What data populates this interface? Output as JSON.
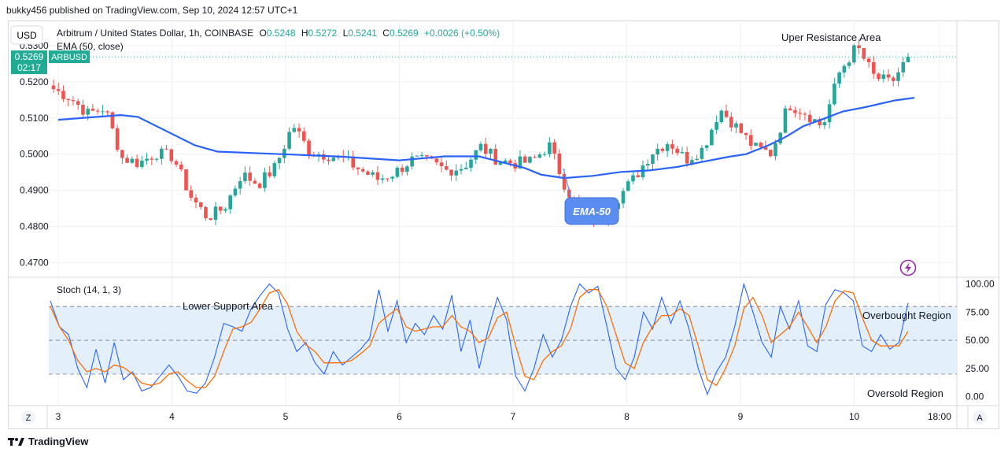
{
  "header": {
    "published": "bukky456 published on TradingView.com, Sep 10, 2024 12:57 UTC+1"
  },
  "currency_button": "USD",
  "footer": {
    "brand": "TradingView"
  },
  "scale_buttons": {
    "left": "Z",
    "right": "A"
  },
  "price_pane": {
    "symbol_line": "Arbitrum / United States Dollar, 1h, COINBASE",
    "ohlc": {
      "o_label": "O",
      "o": "0.5248",
      "h_label": "H",
      "h": "0.5272",
      "l_label": "L",
      "l": "0.5241",
      "c_label": "C",
      "c": "0.5269",
      "change": "+0.0026 (+0.50%)"
    },
    "indicator_line": "EMA (50, close)",
    "last_price_tag": {
      "price": "0.5269",
      "countdown": "02:17",
      "symbol": "ARBUSD"
    },
    "annotations": {
      "resistance": "Uper Resistance Area",
      "ema_callout": "EMA-50"
    }
  },
  "stoch_pane": {
    "title": "Stoch (14, 1, 3)",
    "annotations": {
      "support": "Lower Support Area",
      "overbought": "Overbought Region",
      "oversold": "Oversold Region"
    }
  },
  "colors": {
    "up": "#26a69a",
    "down": "#ef5350",
    "ema": "#2962ff",
    "k_line": "#2962ff",
    "d_line": "#ff6d00",
    "band": "#e3f0fc",
    "last_tag": "#22ab94",
    "callout": "#5b8cf0"
  },
  "chart_data": [
    {
      "type": "candlestick",
      "title": "Arbitrum / United States Dollar, 1h, COINBASE",
      "y_ticks": [
        "0.5300",
        "0.5200",
        "0.5100",
        "0.5000",
        "0.4900",
        "0.4800",
        "0.4700"
      ],
      "x_ticks": [
        "3",
        "4",
        "5",
        "6",
        "7",
        "8",
        "9",
        "10",
        "18:00"
      ],
      "ylim": [
        0.466,
        0.5365
      ],
      "grid": true,
      "last_price": 0.5269,
      "anchors_close": [
        0.518,
        0.5155,
        0.5112,
        0.5128,
        0.499,
        0.4975,
        0.5003,
        0.4993,
        0.4885,
        0.4825,
        0.4852,
        0.4945,
        0.4918,
        0.4965,
        0.5082,
        0.5005,
        0.4998,
        0.4985,
        0.4955,
        0.493,
        0.495,
        0.4985,
        0.4978,
        0.4955,
        0.4965,
        0.502,
        0.4983,
        0.4975,
        0.498,
        0.5025,
        0.4905,
        0.4835,
        0.4815,
        0.4878,
        0.4935,
        0.5005,
        0.5035,
        0.4985,
        0.5015,
        0.5125,
        0.5073,
        0.5018,
        0.5002,
        0.5138,
        0.5115,
        0.5075,
        0.5228,
        0.5298,
        0.5215,
        0.5195,
        0.5268
      ],
      "ema50": [
        0.5095,
        0.5108,
        0.5103,
        0.5025,
        0.5007,
        0.5002,
        0.4997,
        0.4993,
        0.4983,
        0.4994,
        0.4994,
        0.4978,
        0.4962,
        0.4943,
        0.4934,
        0.494,
        0.4951,
        0.4955,
        0.4965,
        0.4978,
        0.4993,
        0.5,
        0.5025,
        0.5048,
        0.5077,
        0.51,
        0.5118,
        0.513,
        0.5148,
        0.5156
      ],
      "ema50_x_days": [
        3.0,
        3.55,
        3.7,
        4.2,
        4.4,
        4.8,
        5.2,
        5.5,
        6.0,
        6.4,
        6.7,
        6.9,
        7.1,
        7.25,
        7.45,
        7.7,
        7.95,
        8.2,
        8.45,
        8.65,
        8.9,
        9.05,
        9.25,
        9.4,
        9.55,
        9.75,
        9.9,
        10.1,
        10.35,
        10.53
      ],
      "ema_label": "EMA (50, close)"
    },
    {
      "type": "line",
      "title": "Stoch (14, 1, 3)",
      "y_ticks": [
        "100.00",
        "75.00",
        "50.00",
        "25.00",
        "0.00"
      ],
      "ylim": [
        -8,
        106
      ],
      "bands": [
        20,
        50,
        80
      ],
      "series": [
        {
          "name": "%K",
          "values": [
            85,
            62,
            55,
            25,
            8,
            42,
            12,
            48,
            15,
            22,
            5,
            8,
            18,
            28,
            18,
            5,
            3,
            12,
            35,
            65,
            62,
            58,
            78,
            90,
            100,
            92,
            60,
            40,
            48,
            30,
            20,
            40,
            28,
            35,
            42,
            52,
            95,
            58,
            85,
            48,
            65,
            55,
            72,
            60,
            90,
            40,
            68,
            25,
            60,
            88,
            68,
            18,
            5,
            25,
            55,
            35,
            50,
            80,
            100,
            92,
            98,
            62,
            25,
            15,
            35,
            75,
            60,
            88,
            65,
            85,
            60,
            25,
            2,
            22,
            35,
            62,
            100,
            75,
            48,
            35,
            80,
            60,
            85,
            45,
            40,
            82,
            95,
            92,
            85,
            45,
            40,
            55,
            42,
            48,
            83
          ]
        },
        {
          "name": "%D",
          "values": [
            80,
            62,
            50,
            32,
            22,
            25,
            22,
            28,
            26,
            20,
            12,
            10,
            12,
            20,
            22,
            14,
            8,
            8,
            18,
            40,
            60,
            62,
            66,
            78,
            92,
            95,
            82,
            58,
            46,
            40,
            30,
            30,
            30,
            32,
            38,
            45,
            65,
            72,
            78,
            62,
            58,
            60,
            62,
            62,
            72,
            62,
            58,
            48,
            52,
            70,
            75,
            45,
            18,
            15,
            32,
            40,
            45,
            60,
            88,
            95,
            95,
            80,
            55,
            30,
            25,
            48,
            62,
            72,
            72,
            78,
            72,
            45,
            15,
            10,
            25,
            45,
            78,
            88,
            72,
            48,
            55,
            62,
            75,
            62,
            48,
            62,
            85,
            94,
            92,
            70,
            50,
            45,
            45,
            45,
            58
          ]
        }
      ]
    }
  ]
}
